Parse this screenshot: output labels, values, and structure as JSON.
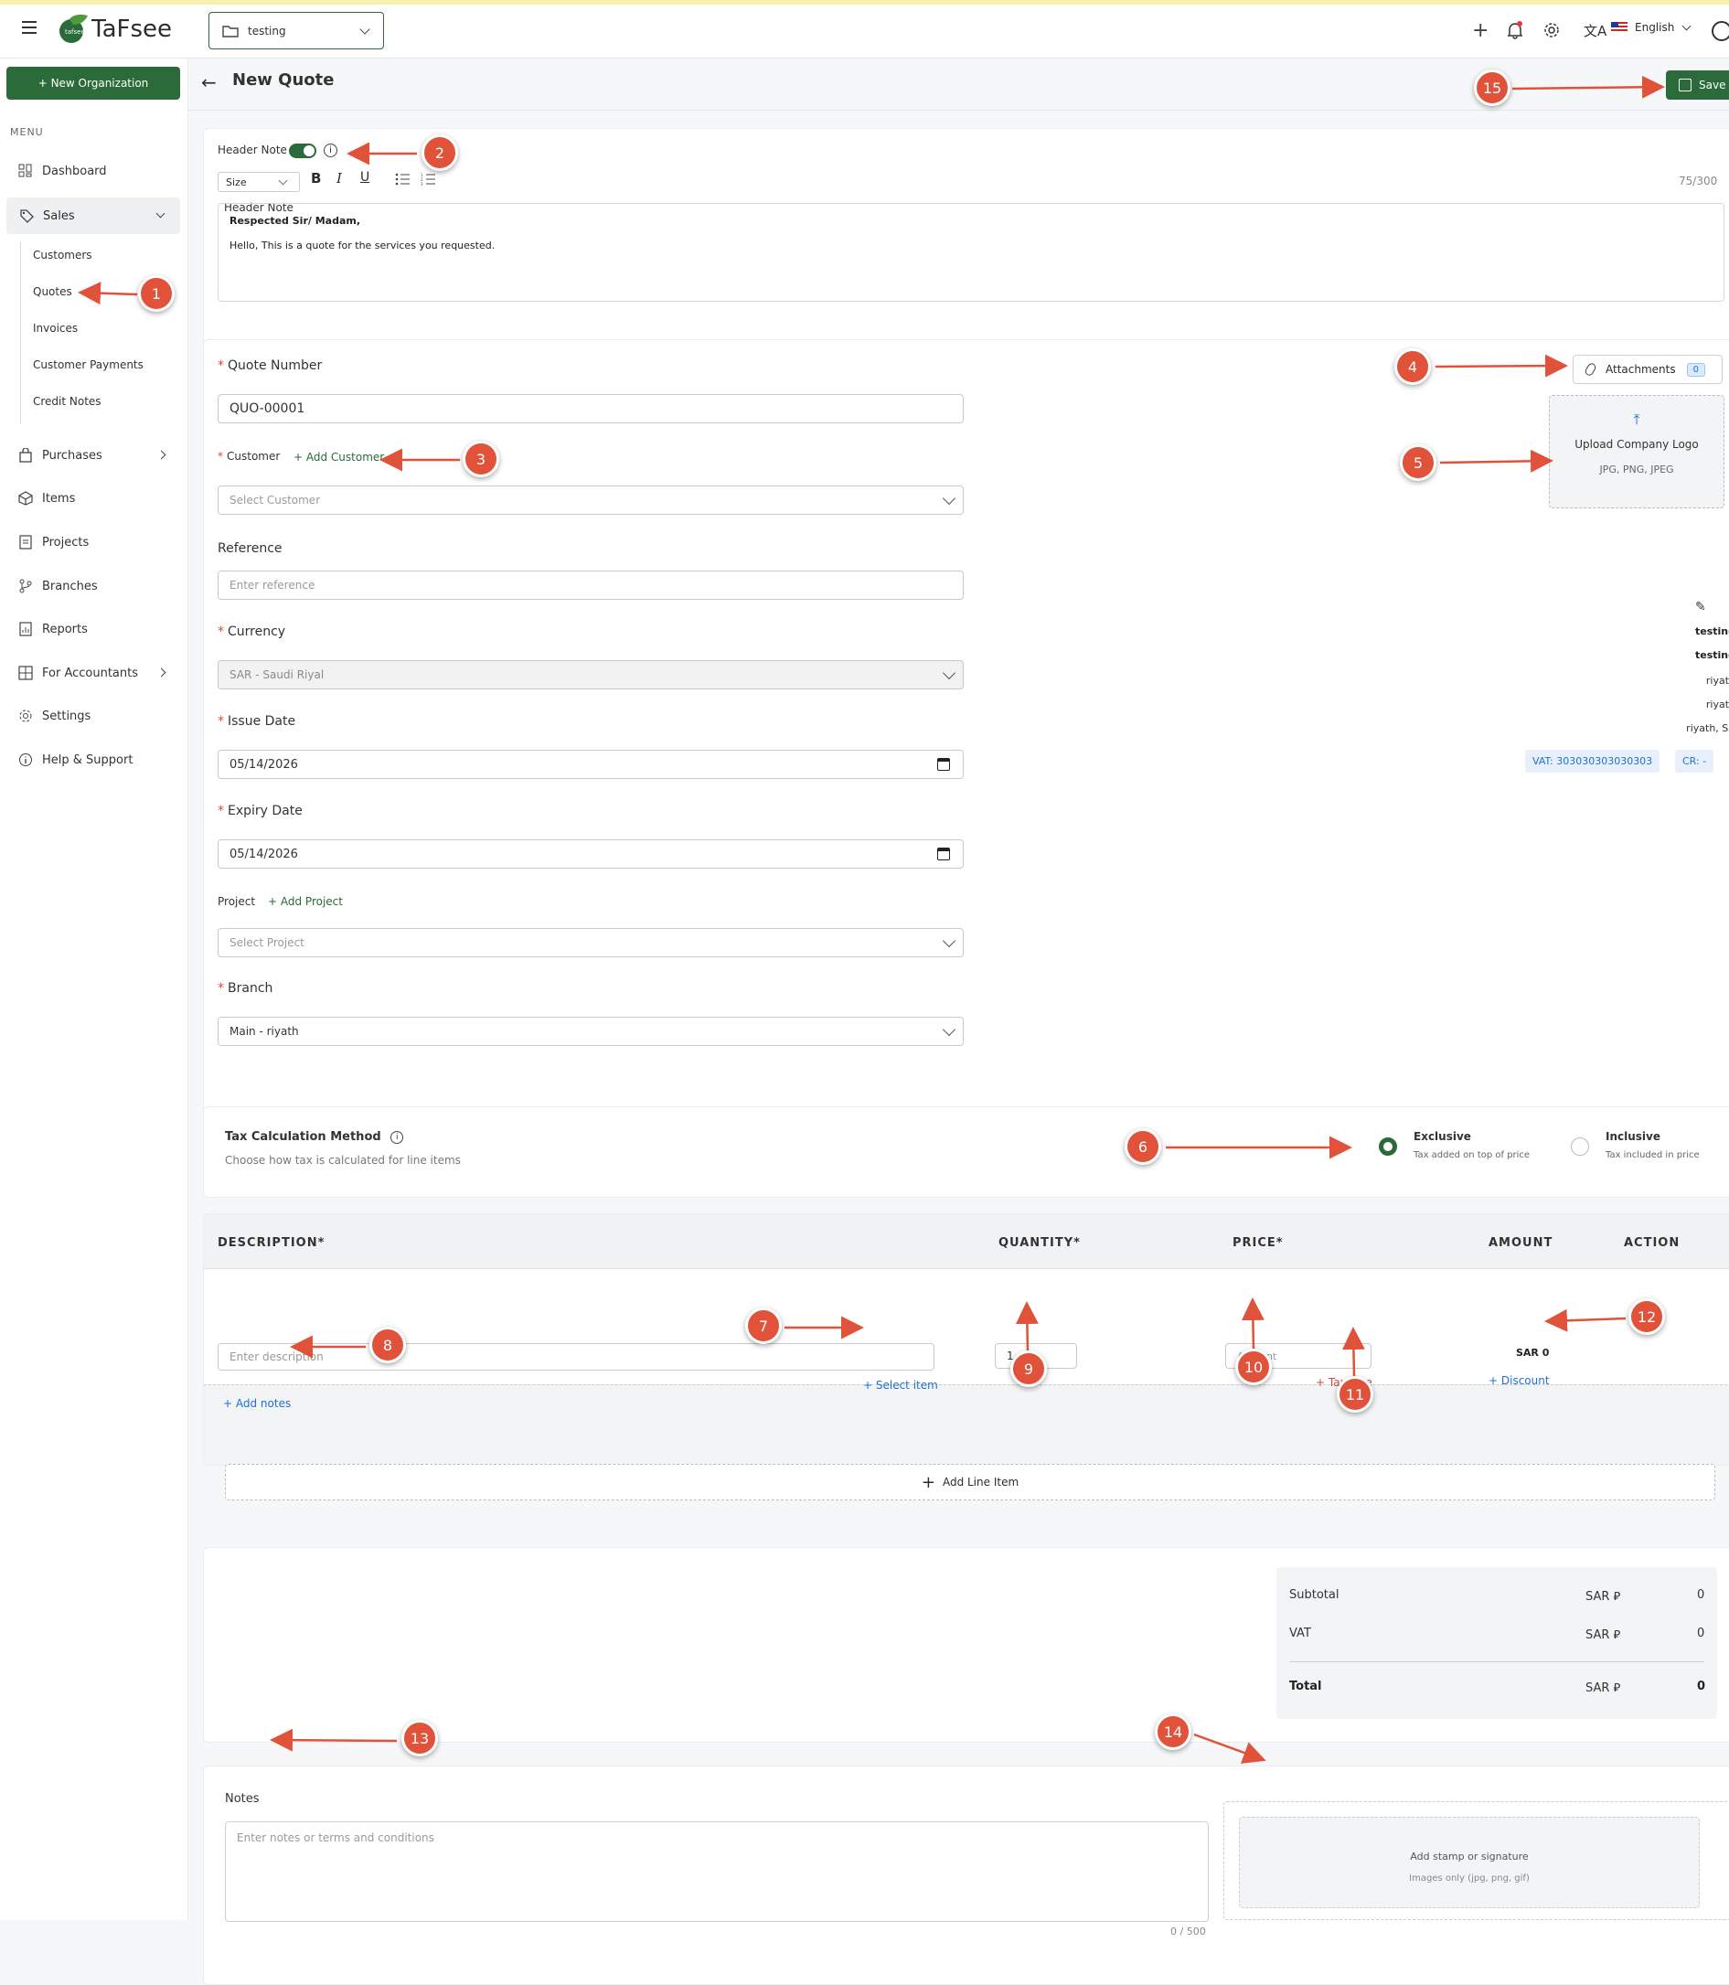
{
  "topbar": {
    "brand": "TaFsee",
    "org_select": "testing",
    "language": "English"
  },
  "sidebar": {
    "new_org_button": "+ New Organization",
    "menu_heading": "MENU",
    "items": {
      "dashboard": "Dashboard",
      "sales": "Sales",
      "customers": "Customers",
      "quotes": "Quotes",
      "invoices": "Invoices",
      "customer_payments": "Customer Payments",
      "credit_notes": "Credit Notes",
      "purchases": "Purchases",
      "items": "Items",
      "projects": "Projects",
      "branches": "Branches",
      "reports": "Reports",
      "for_accountants": "For Accountants",
      "settings": "Settings",
      "help": "Help & Support"
    }
  },
  "page": {
    "title": "New Quote",
    "save_label": "Save"
  },
  "header_note": {
    "label": "Header Note",
    "size_select": "Size",
    "counter": "75/300",
    "line1": "Respected Sir/ Madam,",
    "line2": "Hello, This is a quote for the services you requested."
  },
  "form": {
    "quote_number_label": "Quote Number",
    "quote_number_value": "QUO-00001",
    "customer_label": "Customer",
    "add_customer": "+ Add Customer",
    "customer_placeholder": "Select Customer",
    "reference_label": "Reference",
    "reference_placeholder": "Enter reference",
    "currency_label": "Currency",
    "currency_value": "SAR - Saudi Riyal",
    "issue_date_label": "Issue Date",
    "issue_date_value": "05/14/2026",
    "expiry_date_label": "Expiry Date",
    "expiry_date_value": "05/14/2026",
    "project_label": "Project",
    "add_project": "+ Add Project",
    "project_placeholder": "Select Project",
    "branch_label": "Branch",
    "branch_value": "Main - riyath"
  },
  "side_panel": {
    "attachments_label": "Attachments",
    "attachments_count": "0",
    "upload_logo": "Upload Company Logo",
    "upload_formats": "JPG, PNG, JPEG",
    "org_lines": [
      "testing",
      "testing",
      "riyath",
      "riyath",
      "riyath, SA"
    ],
    "vat": "VAT: 303030303030303",
    "cr": "CR: -"
  },
  "tax": {
    "title": "Tax Calculation Method",
    "subtitle": "Choose how tax is calculated for line items",
    "exclusive_label": "Exclusive",
    "exclusive_desc": "Tax added on top of price",
    "inclusive_label": "Inclusive",
    "inclusive_desc": "Tax included in price",
    "selected": "Exclusive"
  },
  "line_items": {
    "headers": {
      "description": "DESCRIPTION*",
      "quantity": "QUANTITY*",
      "price": "PRICE*",
      "amount": "AMOUNT",
      "action": "ACTION"
    },
    "description_placeholder": "Enter description",
    "add_notes": "+ Add notes",
    "select_item": "+ Select item",
    "quantity_value": "1",
    "price_placeholder": "Amount",
    "tax_rate": "+ Tax rate",
    "amount_value": "SAR 0",
    "discount": "+ Discount",
    "add_line_item": "Add Line Item"
  },
  "totals": {
    "subtotal_label": "Subtotal",
    "vat_label": "VAT",
    "total_label": "Total",
    "currency": "SAR ⃁",
    "subtotal_value": "0",
    "vat_value": "0",
    "total_value": "0"
  },
  "notes": {
    "label": "Notes",
    "placeholder": "Enter notes or terms and conditions",
    "counter": "0 / 500",
    "stamp_title": "Add stamp or signature",
    "stamp_desc": "Images only (jpg, png, gif)"
  },
  "annotations": [
    "1",
    "2",
    "3",
    "4",
    "5",
    "6",
    "7",
    "8",
    "9",
    "10",
    "11",
    "12",
    "13",
    "14",
    "15"
  ]
}
